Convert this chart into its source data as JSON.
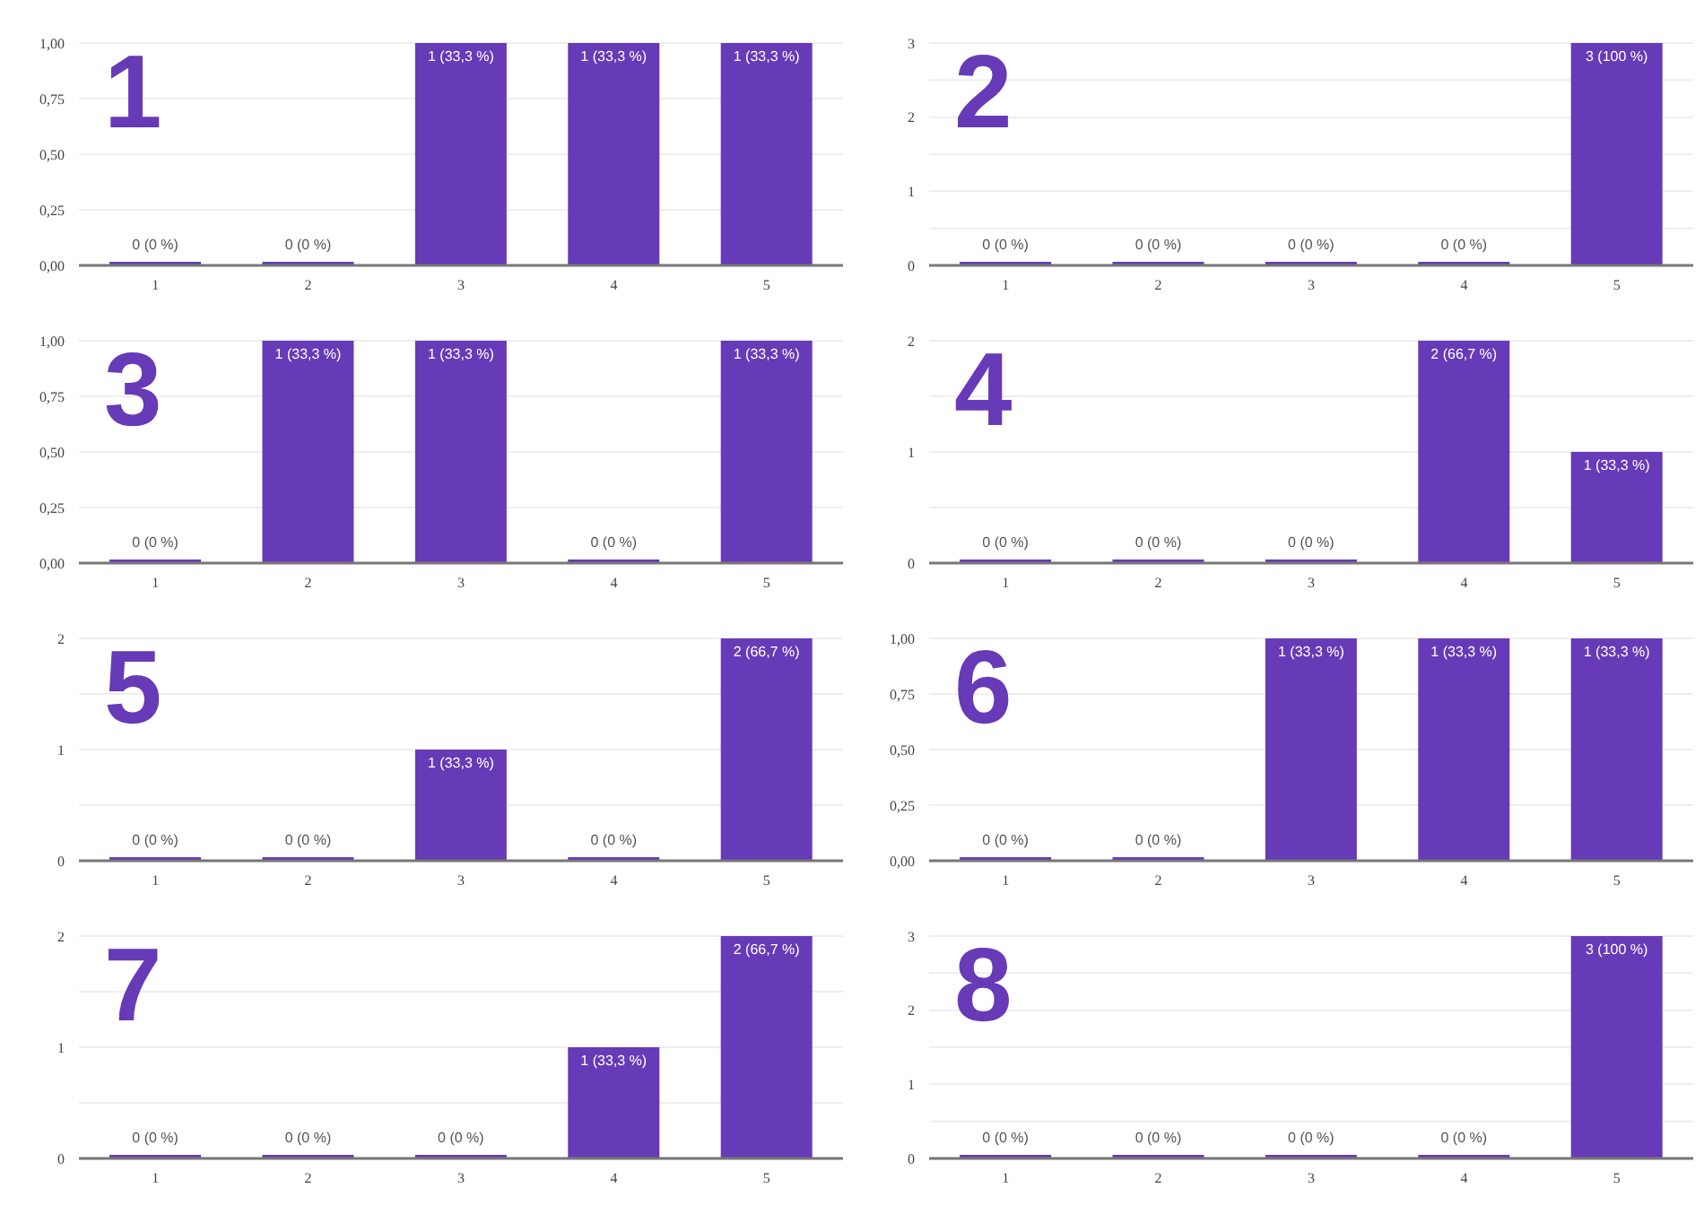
{
  "chart_data": [
    {
      "type": "bar",
      "title": "1",
      "categories": [
        "1",
        "2",
        "3",
        "4",
        "5"
      ],
      "values": [
        0,
        0,
        1,
        1,
        1
      ],
      "color": "#673ab7",
      "value_labels": [
        "0 (0 %)",
        "0 (0 %)",
        "1 (33,3 %)",
        "1 (33,3 %)",
        "1 (33,3 %)"
      ],
      "ylim": [
        0,
        1
      ],
      "yticks": [
        {
          "value": 0,
          "label": "0,00"
        },
        {
          "value": 0.25,
          "label": "0,25"
        },
        {
          "value": 0.5,
          "label": "0,50"
        },
        {
          "value": 0.75,
          "label": "0,75"
        },
        {
          "value": 1,
          "label": "1,00"
        }
      ],
      "grid": "y"
    },
    {
      "type": "bar",
      "title": "2",
      "categories": [
        "1",
        "2",
        "3",
        "4",
        "5"
      ],
      "values": [
        0,
        0,
        0,
        0,
        3
      ],
      "color": "#673ab7",
      "value_labels": [
        "0 (0 %)",
        "0 (0 %)",
        "0 (0 %)",
        "0 (0 %)",
        "3 (100 %)"
      ],
      "ylim": [
        0,
        3
      ],
      "yticks": [
        0,
        {
          "value": 0.5,
          "label": null
        },
        1,
        {
          "value": 1.5,
          "label": null
        },
        2,
        {
          "value": 2.5,
          "label": null
        },
        3
      ],
      "grid": "y"
    },
    {
      "type": "bar",
      "title": "3",
      "categories": [
        "1",
        "2",
        "3",
        "4",
        "5"
      ],
      "values": [
        0,
        1,
        1,
        0,
        1
      ],
      "color": "#673ab7",
      "value_labels": [
        "0 (0 %)",
        "1 (33,3 %)",
        "1 (33,3 %)",
        "0 (0 %)",
        "1 (33,3 %)"
      ],
      "ylim": [
        0,
        1
      ],
      "yticks": [
        {
          "value": 0,
          "label": "0,00"
        },
        {
          "value": 0.25,
          "label": "0,25"
        },
        {
          "value": 0.5,
          "label": "0,50"
        },
        {
          "value": 0.75,
          "label": "0,75"
        },
        {
          "value": 1,
          "label": "1,00"
        }
      ],
      "grid": "y"
    },
    {
      "type": "bar",
      "title": "4",
      "categories": [
        "1",
        "2",
        "3",
        "4",
        "5"
      ],
      "values": [
        0,
        0,
        0,
        2,
        1
      ],
      "color": "#673ab7",
      "value_labels": [
        "0 (0 %)",
        "0 (0 %)",
        "0 (0 %)",
        "2 (66,7 %)",
        "1 (33,3 %)"
      ],
      "ylim": [
        0,
        2
      ],
      "yticks": [
        0,
        {
          "value": 0.5,
          "label": null
        },
        1,
        {
          "value": 1.5,
          "label": null
        },
        2
      ],
      "grid": "y"
    },
    {
      "type": "bar",
      "title": "5",
      "categories": [
        "1",
        "2",
        "3",
        "4",
        "5"
      ],
      "values": [
        0,
        0,
        1,
        0,
        2
      ],
      "color": "#673ab7",
      "value_labels": [
        "0 (0 %)",
        "0 (0 %)",
        "1 (33,3 %)",
        "0 (0 %)",
        "2 (66,7 %)"
      ],
      "ylim": [
        0,
        2
      ],
      "yticks": [
        0,
        {
          "value": 0.5,
          "label": null
        },
        1,
        {
          "value": 1.5,
          "label": null
        },
        2
      ],
      "grid": "y"
    },
    {
      "type": "bar",
      "title": "6",
      "categories": [
        "1",
        "2",
        "3",
        "4",
        "5"
      ],
      "values": [
        0,
        0,
        1,
        1,
        1
      ],
      "color": "#673ab7",
      "value_labels": [
        "0 (0 %)",
        "0 (0 %)",
        "1 (33,3 %)",
        "1 (33,3 %)",
        "1 (33,3 %)"
      ],
      "ylim": [
        0,
        1
      ],
      "yticks": [
        {
          "value": 0,
          "label": "0,00"
        },
        {
          "value": 0.25,
          "label": "0,25"
        },
        {
          "value": 0.5,
          "label": "0,50"
        },
        {
          "value": 0.75,
          "label": "0,75"
        },
        {
          "value": 1,
          "label": "1,00"
        }
      ],
      "grid": "y"
    },
    {
      "type": "bar",
      "title": "7",
      "categories": [
        "1",
        "2",
        "3",
        "4",
        "5"
      ],
      "values": [
        0,
        0,
        0,
        1,
        2
      ],
      "color": "#673ab7",
      "value_labels": [
        "0 (0 %)",
        "0 (0 %)",
        "0 (0 %)",
        "1 (33,3 %)",
        "2 (66,7 %)"
      ],
      "ylim": [
        0,
        2
      ],
      "yticks": [
        0,
        {
          "value": 0.5,
          "label": null
        },
        1,
        {
          "value": 1.5,
          "label": null
        },
        2
      ],
      "grid": "y"
    },
    {
      "type": "bar",
      "title": "8",
      "categories": [
        "1",
        "2",
        "3",
        "4",
        "5"
      ],
      "values": [
        0,
        0,
        0,
        0,
        3
      ],
      "color": "#673ab7",
      "value_labels": [
        "0 (0 %)",
        "0 (0 %)",
        "0 (0 %)",
        "0 (0 %)",
        "3 (100 %)"
      ],
      "ylim": [
        0,
        3
      ],
      "yticks": [
        0,
        {
          "value": 0.5,
          "label": null
        },
        1,
        {
          "value": 1.5,
          "label": null
        },
        2,
        {
          "value": 2.5,
          "label": null
        },
        3
      ],
      "grid": "y"
    }
  ]
}
